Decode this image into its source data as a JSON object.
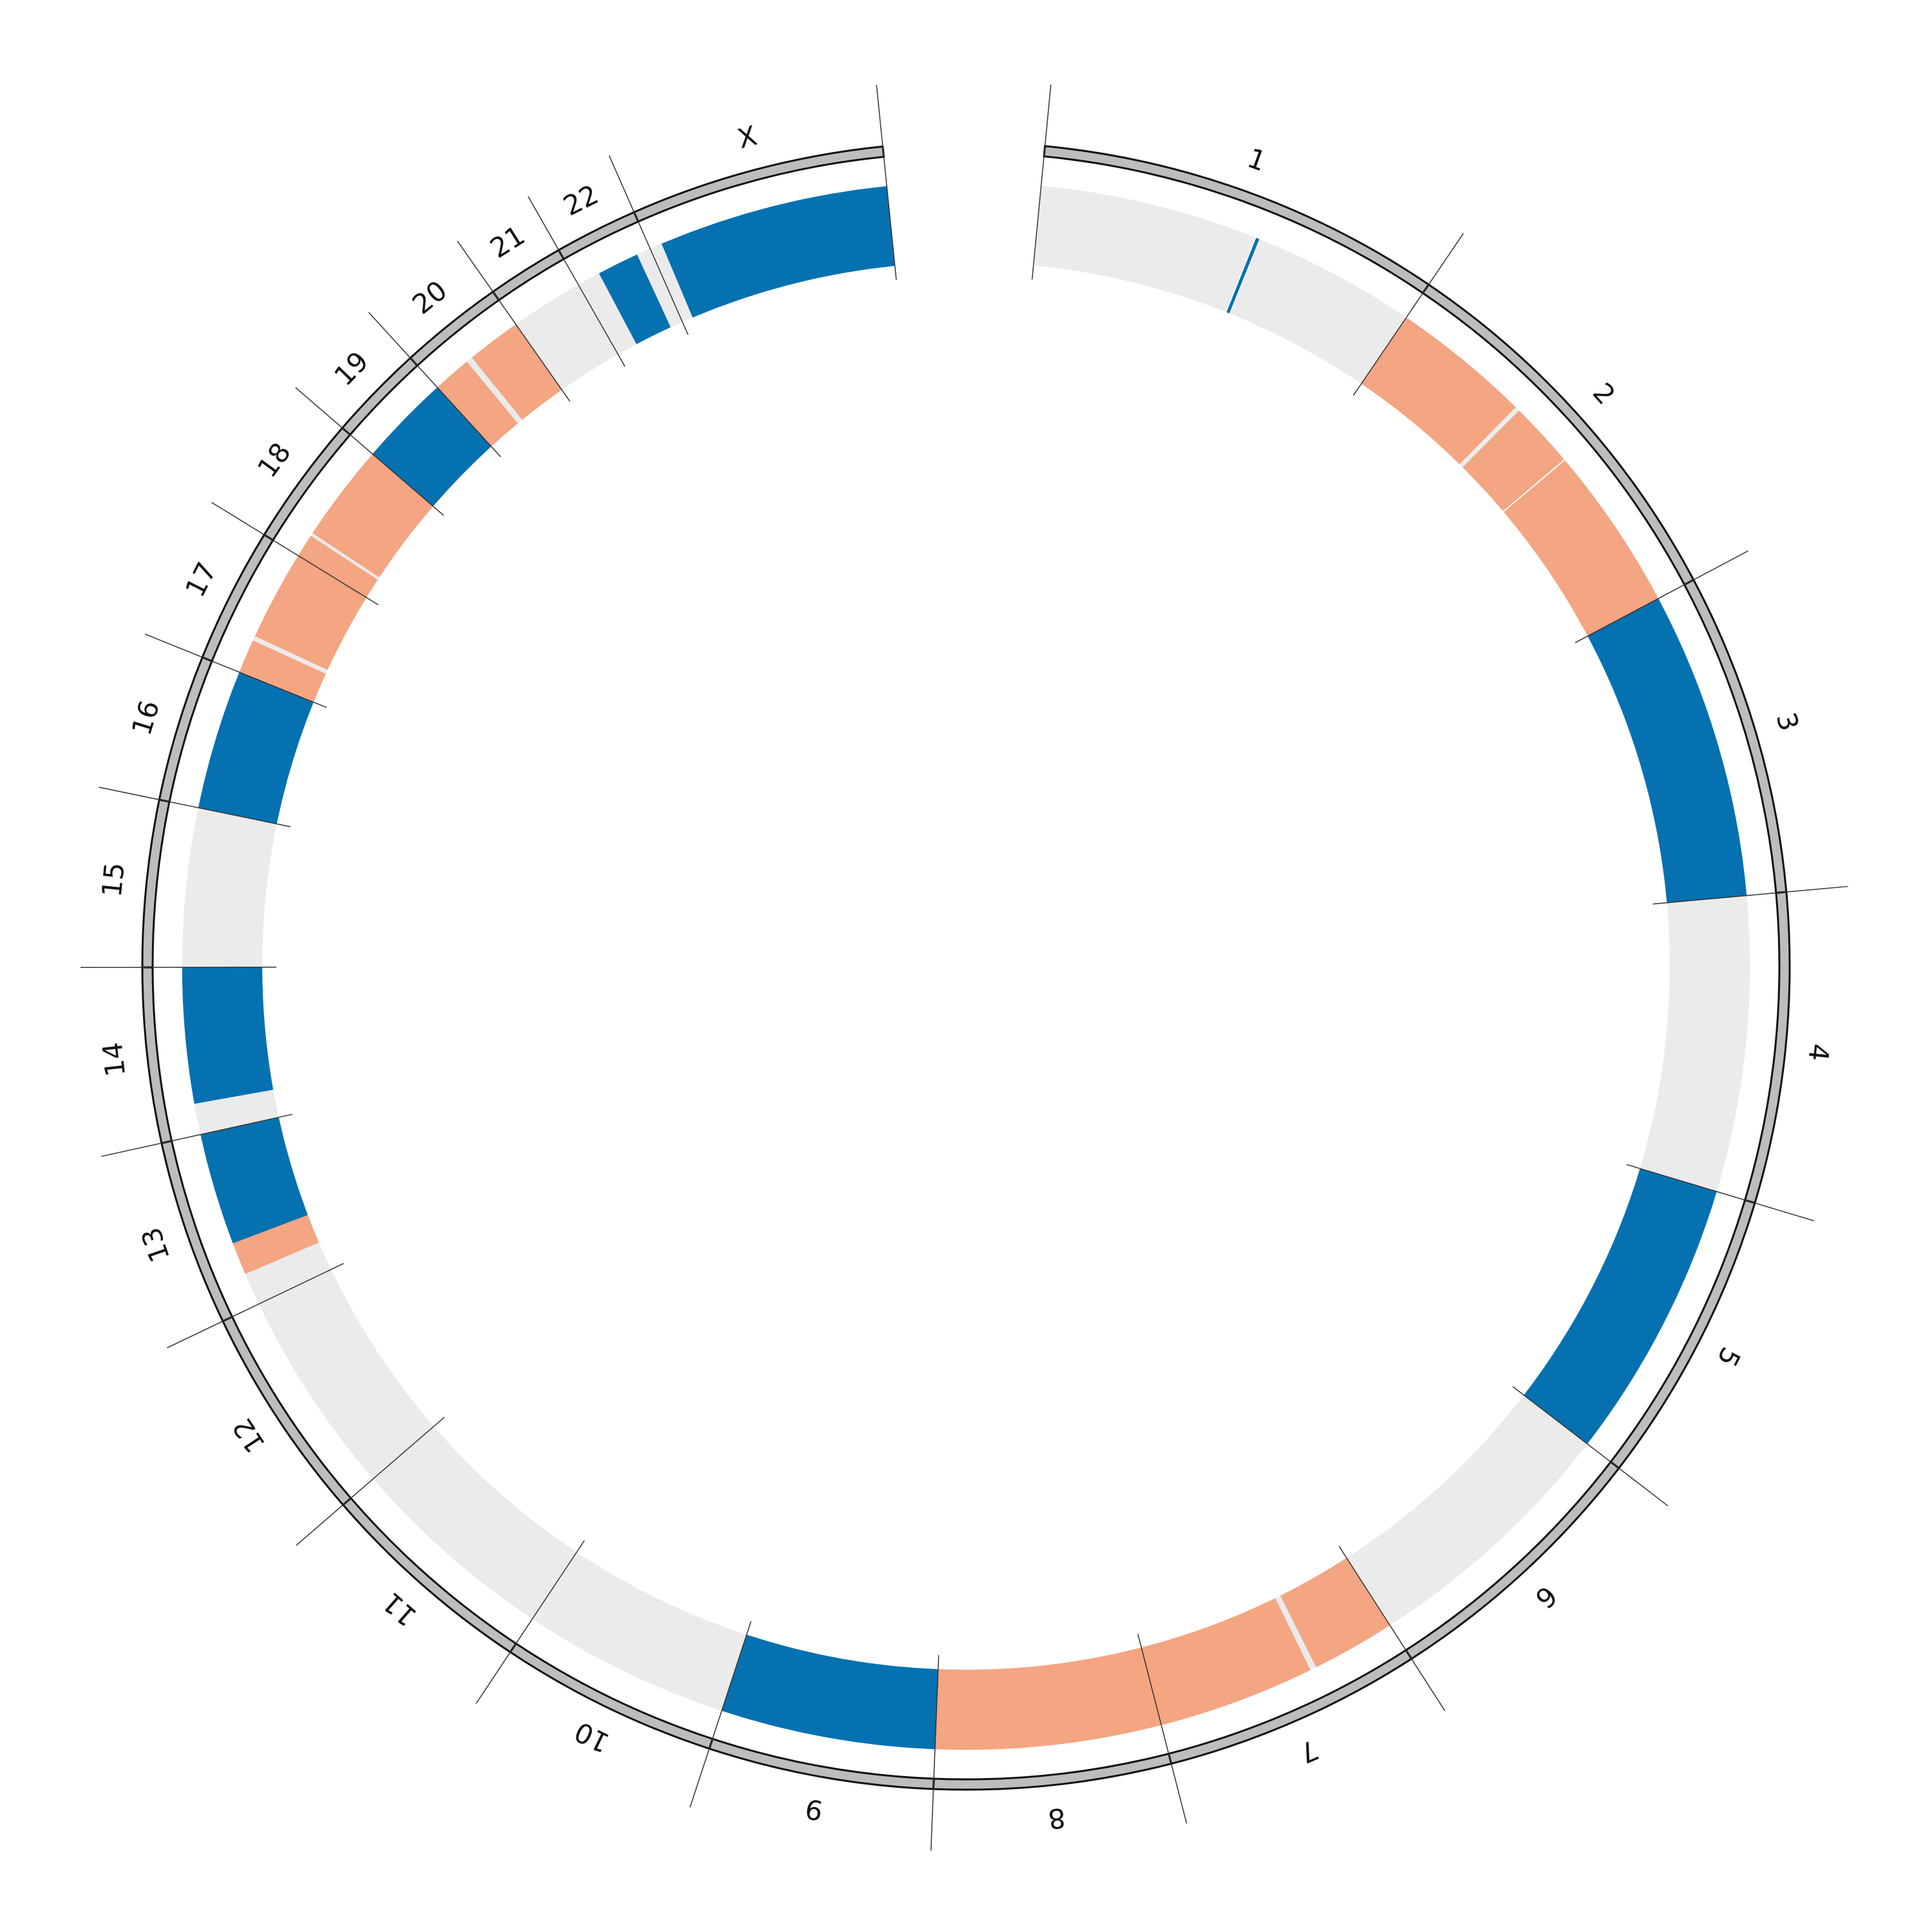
{
  "chart_data": {
    "type": "circos",
    "chromosomes": [
      {
        "name": "1",
        "length": 249,
        "segments": [
          {
            "start": 0,
            "end": 140,
            "color": "#ebebeb"
          },
          {
            "start": 141,
            "end": 143,
            "color": "#0571b0"
          },
          {
            "start": 144,
            "end": 249,
            "color": "#ebebeb"
          }
        ]
      },
      {
        "name": "2",
        "length": 242,
        "segments": [
          {
            "start": 0,
            "end": 90,
            "color": "#f4a582"
          },
          {
            "start": 90,
            "end": 93,
            "color": "#ebebeb"
          },
          {
            "start": 93,
            "end": 135,
            "color": "#f4a582"
          },
          {
            "start": 136,
            "end": 242,
            "color": "#f4a582"
          }
        ]
      },
      {
        "name": "3",
        "length": 198,
        "segments": [
          {
            "start": 0,
            "end": 198,
            "color": "#0571b0"
          }
        ]
      },
      {
        "name": "4",
        "length": 190,
        "segments": [
          {
            "start": 0,
            "end": 190,
            "color": "#ebebeb"
          }
        ]
      },
      {
        "name": "5",
        "length": 181,
        "segments": [
          {
            "start": 0,
            "end": 181,
            "color": "#0571b0"
          }
        ]
      },
      {
        "name": "6",
        "length": 171,
        "segments": [
          {
            "start": 0,
            "end": 171,
            "color": "#ebebeb"
          }
        ]
      },
      {
        "name": "7",
        "length": 159,
        "segments": [
          {
            "start": 0,
            "end": 54,
            "color": "#f4a582"
          },
          {
            "start": 54,
            "end": 58,
            "color": "#ebebeb"
          },
          {
            "start": 58,
            "end": 159,
            "color": "#f4a582"
          }
        ]
      },
      {
        "name": "8",
        "length": 145,
        "segments": [
          {
            "start": 0,
            "end": 145,
            "color": "#f4a582"
          }
        ]
      },
      {
        "name": "9",
        "length": 138,
        "segments": [
          {
            "start": 0,
            "end": 138,
            "color": "#0571b0"
          }
        ]
      },
      {
        "name": "10",
        "length": 134,
        "segments": [
          {
            "start": 0,
            "end": 134,
            "color": "#ebebeb"
          }
        ]
      },
      {
        "name": "11",
        "length": 135,
        "segments": [
          {
            "start": 0,
            "end": 135,
            "color": "#ebebeb"
          }
        ]
      },
      {
        "name": "12",
        "length": 133,
        "segments": [
          {
            "start": 0,
            "end": 133,
            "color": "#ebebeb"
          }
        ]
      },
      {
        "name": "13",
        "length": 114,
        "segments": [
          {
            "start": 0,
            "end": 21,
            "color": "#ebebeb"
          },
          {
            "start": 21,
            "end": 42,
            "color": "#f4a582"
          },
          {
            "start": 42,
            "end": 114,
            "color": "#0571b0"
          }
        ]
      },
      {
        "name": "14",
        "length": 107,
        "segments": [
          {
            "start": 0,
            "end": 20,
            "color": "#ebebeb"
          },
          {
            "start": 20,
            "end": 107,
            "color": "#0571b0"
          }
        ]
      },
      {
        "name": "15",
        "length": 102,
        "segments": [
          {
            "start": 0,
            "end": 102,
            "color": "#ebebeb"
          }
        ]
      },
      {
        "name": "16",
        "length": 90,
        "segments": [
          {
            "start": 0,
            "end": 33,
            "color": "#0571b0"
          },
          {
            "start": 33,
            "end": 90,
            "color": "#0571b0"
          }
        ]
      },
      {
        "name": "17",
        "length": 83,
        "segments": [
          {
            "start": 0,
            "end": 22,
            "color": "#f4a582"
          },
          {
            "start": 22,
            "end": 25,
            "color": "#ebebeb"
          },
          {
            "start": 25,
            "end": 83,
            "color": "#f4a582"
          }
        ]
      },
      {
        "name": "18",
        "length": 80,
        "segments": [
          {
            "start": 0,
            "end": 15,
            "color": "#f4a582"
          },
          {
            "start": 15,
            "end": 17,
            "color": "#ebebeb"
          },
          {
            "start": 17,
            "end": 80,
            "color": "#f4a582"
          }
        ]
      },
      {
        "name": "19",
        "length": 59,
        "segments": [
          {
            "start": 0,
            "end": 59,
            "color": "#0571b0"
          }
        ]
      },
      {
        "name": "20",
        "length": 64,
        "segments": [
          {
            "start": 0,
            "end": 25,
            "color": "#f4a582"
          },
          {
            "start": 25,
            "end": 29,
            "color": "#ebebeb"
          },
          {
            "start": 29,
            "end": 64,
            "color": "#f4a582"
          }
        ]
      },
      {
        "name": "21",
        "length": 47,
        "segments": [
          {
            "start": 0,
            "end": 47,
            "color": "#ebebeb"
          }
        ]
      },
      {
        "name": "22",
        "length": 51,
        "segments": [
          {
            "start": 0,
            "end": 15,
            "color": "#ebebeb"
          },
          {
            "start": 15,
            "end": 42,
            "color": "#0571b0"
          },
          {
            "start": 42,
            "end": 51,
            "color": "#ebebeb"
          }
        ]
      },
      {
        "name": "X",
        "length": 156,
        "segments": [
          {
            "start": 0,
            "end": 8,
            "color": "#ebebeb"
          },
          {
            "start": 8,
            "end": 156,
            "color": "#0571b0"
          }
        ]
      }
    ]
  }
}
